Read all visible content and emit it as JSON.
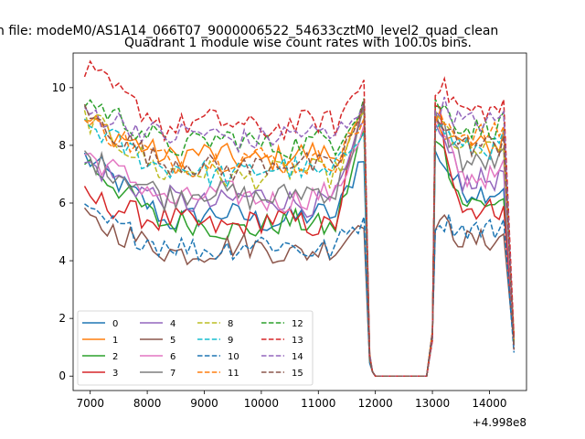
{
  "chart_data": {
    "type": "line",
    "suptitle": "n file: modeM0/AS1A14_066T07_9000006522_54633cztM0_level2_quad_clean",
    "title": "Quadrant 1 module wise count rates with 100.0s bins.",
    "xlabel": "",
    "ylabel": "",
    "x_offset_label": "+4.998e8",
    "xlim": [
      6700,
      14650
    ],
    "ylim": [
      -0.5,
      11.2
    ],
    "x_ticks": [
      7000,
      8000,
      9000,
      10000,
      11000,
      12000,
      13000,
      14000
    ],
    "x_tick_labels": [
      "7000",
      "8000",
      "9000",
      "10000",
      "11000",
      "12000",
      "13000",
      "14000"
    ],
    "y_ticks": [
      0,
      2,
      4,
      6,
      8,
      10
    ],
    "y_tick_labels": [
      "0",
      "2",
      "4",
      "6",
      "8",
      "10"
    ],
    "grid": false,
    "legend_position": "lower-left",
    "gap": {
      "start": 11850,
      "end": 12950
    },
    "x_start": 6900,
    "x_step": 100,
    "n_before": 50,
    "n_after": 16,
    "series": [
      {
        "name": "0",
        "color": "#1f77b4",
        "dash": "solid",
        "level": 5.5,
        "start": 7.6,
        "peak": 7.8,
        "after": 6.4
      },
      {
        "name": "1",
        "color": "#ff7f0e",
        "dash": "solid",
        "level": 7.6,
        "start": 8.9,
        "peak": 8.9,
        "after": 8.0
      },
      {
        "name": "2",
        "color": "#2ca02c",
        "dash": "solid",
        "level": 5.2,
        "start": 7.5,
        "peak": 8.5,
        "after": 6.0
      },
      {
        "name": "3",
        "color": "#d62728",
        "dash": "solid",
        "level": 5.3,
        "start": 6.2,
        "peak": 9.3,
        "after": 5.8
      },
      {
        "name": "4",
        "color": "#9467bd",
        "dash": "solid",
        "level": 6.1,
        "start": 7.4,
        "peak": 8.7,
        "after": 6.8
      },
      {
        "name": "5",
        "color": "#8c564b",
        "dash": "solid",
        "level": 4.4,
        "start": 5.4,
        "peak": 5.5,
        "after": 4.7
      },
      {
        "name": "6",
        "color": "#e377c2",
        "dash": "solid",
        "level": 6.2,
        "start": 7.7,
        "peak": 8.8,
        "after": 6.9
      },
      {
        "name": "7",
        "color": "#7f7f7f",
        "dash": "solid",
        "level": 6.3,
        "start": 7.6,
        "peak": 9.1,
        "after": 7.4
      },
      {
        "name": "8",
        "color": "#bcbd22",
        "dash": "dashed",
        "level": 7.0,
        "start": 9.0,
        "peak": 9.0,
        "after": 7.8
      },
      {
        "name": "9",
        "color": "#17becf",
        "dash": "dashed",
        "level": 7.1,
        "start": 8.8,
        "peak": 8.8,
        "after": 7.9
      },
      {
        "name": "10",
        "color": "#1f77b4",
        "dash": "dashed",
        "level": 4.5,
        "start": 5.6,
        "peak": 5.5,
        "after": 5.1
      },
      {
        "name": "11",
        "color": "#ff7f0e",
        "dash": "dashed",
        "level": 7.5,
        "start": 8.8,
        "peak": 9.0,
        "after": 8.4
      },
      {
        "name": "12",
        "color": "#2ca02c",
        "dash": "dashed",
        "level": 8.1,
        "start": 9.6,
        "peak": 9.6,
        "after": 8.6
      },
      {
        "name": "13",
        "color": "#d62728",
        "dash": "dashed",
        "level": 8.7,
        "start": 10.6,
        "peak": 10.3,
        "after": 9.2
      },
      {
        "name": "14",
        "color": "#9467bd",
        "dash": "dashed",
        "level": 8.3,
        "start": 9.2,
        "peak": 9.6,
        "after": 8.8
      },
      {
        "name": "15",
        "color": "#8c564b",
        "dash": "dashed",
        "level": 7.3,
        "start": 9.1,
        "peak": 9.2,
        "after": 8.0
      }
    ]
  }
}
